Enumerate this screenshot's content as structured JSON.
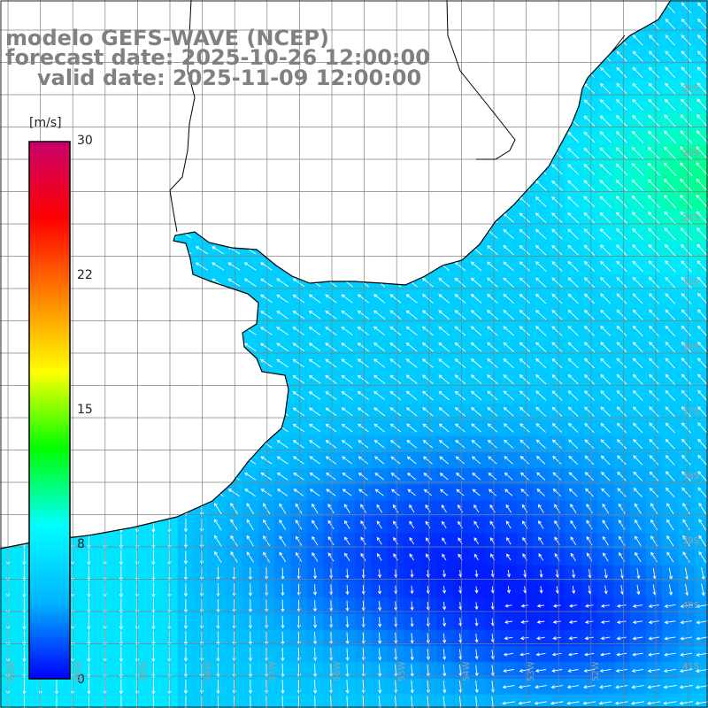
{
  "titles": {
    "model": "modelo GEFS-WAVE (NCEP)",
    "forecast": "forecast date: 2025-10-26 12:00:00",
    "valid": "valid date: 2025-11-09 12:00:00"
  },
  "colorbar": {
    "unit": "[m/s]",
    "min": 0,
    "max": 30,
    "ticks": [
      "30",
      "22",
      "15",
      "8",
      "0"
    ],
    "tick_values": [
      30,
      22,
      15,
      8,
      0
    ],
    "colors": [
      "#0000ff",
      "#00b4ff",
      "#00ffff",
      "#00ff00",
      "#ffff00",
      "#ff8000",
      "#ff0000",
      "#c8006e"
    ]
  },
  "map": {
    "lon_range": [
      -62,
      -51.5
    ],
    "lat_range": [
      -42,
      -31.5
    ],
    "lat_labels": [
      "32S",
      "33S",
      "34S",
      "35S",
      "36S",
      "37S",
      "38S",
      "39S",
      "40S",
      "41S"
    ],
    "lon_labels": [
      "61W",
      "60W",
      "59W",
      "58W",
      "57W",
      "56W",
      "55W",
      "54W",
      "53W",
      "52W"
    ],
    "coastline_color": "#000000",
    "grid_color": "#808080",
    "arrow_color": "#ffffff"
  }
}
